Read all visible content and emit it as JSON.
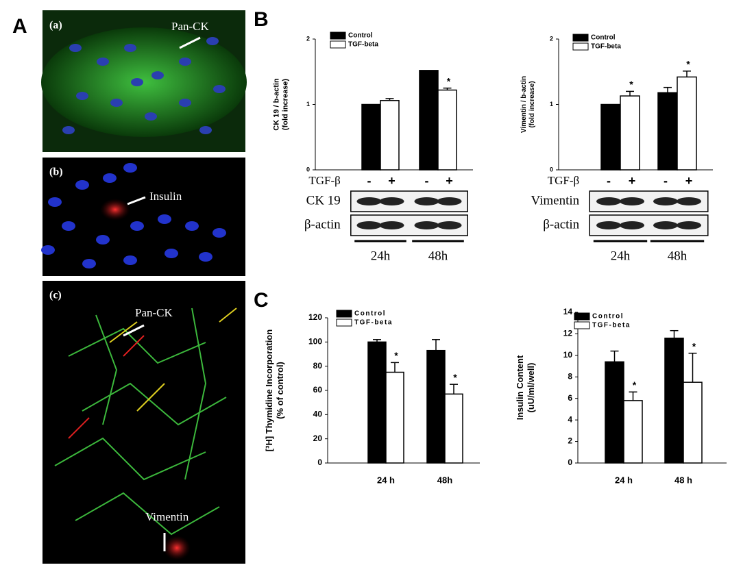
{
  "panel_letters": [
    "A",
    "B",
    "C"
  ],
  "images": [
    {
      "label": "(a)",
      "annotations": [
        "Pan-CK"
      ]
    },
    {
      "label": "(b)",
      "annotations": [
        "Insulin"
      ]
    },
    {
      "label": "(c)",
      "annotations": [
        "Pan-CK",
        "Vimentin"
      ]
    }
  ],
  "chart_data": [
    {
      "type": "bar",
      "ylabel": [
        "CK 19 / b-actin",
        "(fold increase)"
      ],
      "categories": [
        "24h",
        "48h"
      ],
      "series": [
        {
          "name": "Control",
          "color": "#000000",
          "values": [
            1.0,
            1.52
          ],
          "errors": [
            0,
            0
          ],
          "significant": [
            false,
            false
          ]
        },
        {
          "name": "TGF-beta",
          "color": "#ffffff",
          "values": [
            1.06,
            1.22
          ],
          "errors": [
            0.03,
            0.03
          ],
          "significant": [
            false,
            true
          ]
        }
      ],
      "significance_label": "*",
      "ylim": [
        0,
        2
      ],
      "yticks": [
        0,
        1,
        2
      ],
      "blot": {
        "treatment_label": "TGF-β",
        "signs": [
          "-",
          "+",
          "-",
          "+"
        ],
        "rows": [
          "CK 19",
          "β-actin"
        ]
      }
    },
    {
      "type": "bar",
      "ylabel": [
        "Vimentin / b-actin",
        "(fold increase)"
      ],
      "categories": [
        "24h",
        "48h"
      ],
      "series": [
        {
          "name": "Control",
          "color": "#000000",
          "values": [
            1.0,
            1.18
          ],
          "errors": [
            0,
            0.08
          ],
          "significant": [
            false,
            false
          ]
        },
        {
          "name": "TGF-beta",
          "color": "#ffffff",
          "values": [
            1.13,
            1.42
          ],
          "errors": [
            0.07,
            0.09
          ],
          "significant": [
            true,
            true
          ]
        }
      ],
      "significance_label": "*",
      "ylim": [
        0,
        2
      ],
      "yticks": [
        0,
        1,
        2
      ],
      "blot": {
        "treatment_label": "TGF-β",
        "signs": [
          "-",
          "+",
          "-",
          "+"
        ],
        "rows": [
          "Vimentin",
          "β-actin"
        ]
      }
    },
    {
      "type": "bar",
      "ylabel": [
        "[³H] Thymidine Incorporation",
        "(% of control)"
      ],
      "categories": [
        "24 h",
        "48h"
      ],
      "series": [
        {
          "name": "Control",
          "color": "#000000",
          "values": [
            100,
            93
          ],
          "errors": [
            2,
            9
          ],
          "significant": [
            false,
            false
          ]
        },
        {
          "name": "TGF-beta",
          "color": "#ffffff",
          "values": [
            75,
            57
          ],
          "errors": [
            8,
            8
          ],
          "significant": [
            true,
            true
          ]
        }
      ],
      "significance_label": "*",
      "ylim": [
        0,
        120
      ],
      "yticks": [
        0,
        20,
        40,
        60,
        80,
        100,
        120
      ]
    },
    {
      "type": "bar",
      "ylabel": [
        "Insulin Content",
        "(uU/ml/well)"
      ],
      "categories": [
        "24 h",
        "48 h"
      ],
      "series": [
        {
          "name": "Control",
          "color": "#000000",
          "values": [
            9.4,
            11.6
          ],
          "errors": [
            1.0,
            0.7
          ],
          "significant": [
            false,
            false
          ]
        },
        {
          "name": "TGF-beta",
          "color": "#ffffff",
          "values": [
            5.8,
            7.5
          ],
          "errors": [
            0.8,
            2.7
          ],
          "significant": [
            true,
            true
          ]
        }
      ],
      "significance_label": "*",
      "ylim": [
        0,
        14
      ],
      "yticks": [
        0,
        2,
        4,
        6,
        8,
        10,
        12,
        14
      ]
    }
  ]
}
